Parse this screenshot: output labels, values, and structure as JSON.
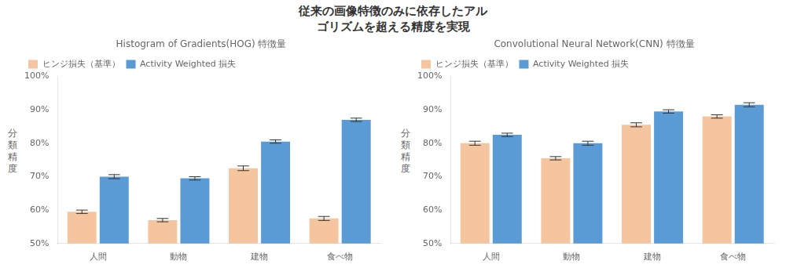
{
  "title": "従来の画像特徴のみに依存したアル\nゴリズムを超える精度を実現",
  "chart_data": [
    {
      "type": "bar",
      "title": "Histogram of Gradients(HOG) 特徴量",
      "categories": [
        "人間",
        "動物",
        "建物",
        "食べ物"
      ],
      "ylabel": "分\n類\n精\n度",
      "series": [
        {
          "name": "ヒンジ損失（基準）",
          "color": "#F5C5A0",
          "values": [
            59.5,
            57.0,
            72.5,
            57.5
          ],
          "errors": [
            0.5,
            0.5,
            0.7,
            0.6
          ]
        },
        {
          "name": "Activity Weighted 損失",
          "color": "#5B9BD5",
          "values": [
            70.0,
            69.5,
            80.5,
            87.0
          ],
          "errors": [
            0.6,
            0.5,
            0.5,
            0.5
          ]
        }
      ],
      "ylim": [
        50,
        100
      ],
      "yticks": [
        {
          "value": 50,
          "label": "50%"
        },
        {
          "value": 60,
          "label": "60%"
        },
        {
          "value": 70,
          "label": "70%"
        },
        {
          "value": 80,
          "label": "80%"
        },
        {
          "value": 90,
          "label": "90%"
        },
        {
          "value": 100,
          "label": "100%"
        }
      ],
      "legend": "upper left",
      "grid": false
    },
    {
      "type": "bar",
      "title": "Convolutional Neural Network(CNN) 特徴量",
      "categories": [
        "人間",
        "動物",
        "建物",
        "食べ物"
      ],
      "ylabel": "分\n類\n精\n度",
      "series": [
        {
          "name": "ヒンジ損失（基準）",
          "color": "#F5C5A0",
          "values": [
            80.0,
            75.5,
            85.5,
            88.0
          ],
          "errors": [
            0.6,
            0.5,
            0.6,
            0.5
          ]
        },
        {
          "name": "Activity Weighted 損失",
          "color": "#5B9BD5",
          "values": [
            82.5,
            80.0,
            89.5,
            91.5
          ],
          "errors": [
            0.5,
            0.6,
            0.5,
            0.6
          ]
        }
      ],
      "ylim": [
        50,
        100
      ],
      "yticks": [
        {
          "value": 50,
          "label": "50%"
        },
        {
          "value": 60,
          "label": "60%"
        },
        {
          "value": 70,
          "label": "70%"
        },
        {
          "value": 80,
          "label": "80%"
        },
        {
          "value": 90,
          "label": "90%"
        },
        {
          "value": 100,
          "label": "100%"
        }
      ],
      "legend": "upper left",
      "grid": false
    }
  ]
}
